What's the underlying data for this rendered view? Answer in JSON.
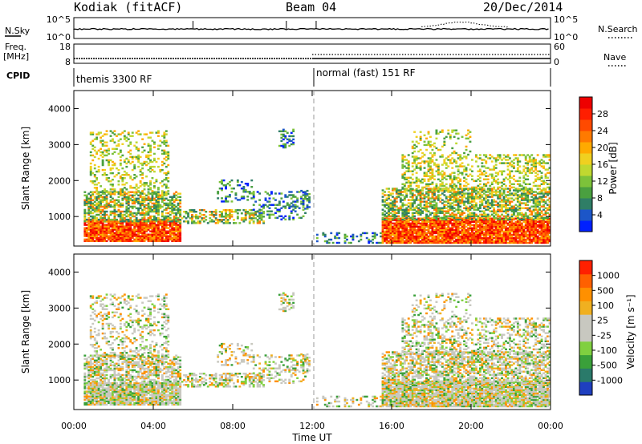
{
  "header": {
    "station": "Kodiak (fitACF)",
    "beam": "Beam 04",
    "date": "20/Dec/2014"
  },
  "strip_labels": {
    "nsky": "N.Sky",
    "nsky_ticks": [
      "10^5",
      "10^0"
    ],
    "nsearch": "N.Search",
    "nsearch_ticks": [
      "10^5",
      "10^0"
    ],
    "freq_label_1": "Freq.",
    "freq_label_2": "[MHz]",
    "freq_ticks": [
      "18",
      "8"
    ],
    "nave": "Nave",
    "nave_ticks": [
      "60",
      "0"
    ],
    "cpid": "CPID"
  },
  "modes": [
    {
      "label": "themis 3300 RF",
      "start_hour": 0
    },
    {
      "label": "normal (fast) 151 RF",
      "start_hour": 12
    }
  ],
  "chart_data": [
    {
      "type": "heatmap",
      "panel": "power",
      "ylabel": "Slant Range [km]",
      "xlabel": "Time UT",
      "x_range_hours": [
        0,
        24
      ],
      "ylim": [
        180,
        4500
      ],
      "y_ticks": [
        1000,
        2000,
        3000,
        4000
      ],
      "x_ticks": [
        "00:00",
        "04:00",
        "08:00",
        "12:00",
        "16:00",
        "20:00",
        "00:00"
      ],
      "colorbar": {
        "label": "Power [dB]",
        "ticks": [
          "28",
          "24",
          "20",
          "16",
          "12",
          "8",
          "4"
        ],
        "colors": [
          "#0020ff",
          "#1c56c8",
          "#2f7e66",
          "#4aa040",
          "#7dc23a",
          "#c0d830",
          "#f0d020",
          "#ffaa00",
          "#ff7a00",
          "#ff4a00",
          "#ff1e00",
          "#ee0000"
        ]
      }
    },
    {
      "type": "heatmap",
      "panel": "velocity",
      "ylabel": "Slant Range [km]",
      "xlabel": "Time UT",
      "x_range_hours": [
        0,
        24
      ],
      "ylim": [
        180,
        4500
      ],
      "y_ticks": [
        1000,
        2000,
        3000,
        4000
      ],
      "x_ticks": [
        "00:00",
        "04:00",
        "08:00",
        "12:00",
        "16:00",
        "20:00",
        "00:00"
      ],
      "colorbar": {
        "label": "Velocity [m s⁻¹]",
        "ticks": [
          "1000",
          "500",
          "100",
          "25",
          "-25",
          "-100",
          "-500",
          "-1000"
        ],
        "colors": [
          "#1f3fbf",
          "#2a7a6a",
          "#3aa03a",
          "#80d040",
          "#c8c8c0",
          "#c8c8c0",
          "#f0b020",
          "#ff9000",
          "#ff6000",
          "#ff2000"
        ]
      }
    }
  ],
  "colors": {
    "ground_scatter": "#c8c8c0",
    "axis": "#000000"
  }
}
